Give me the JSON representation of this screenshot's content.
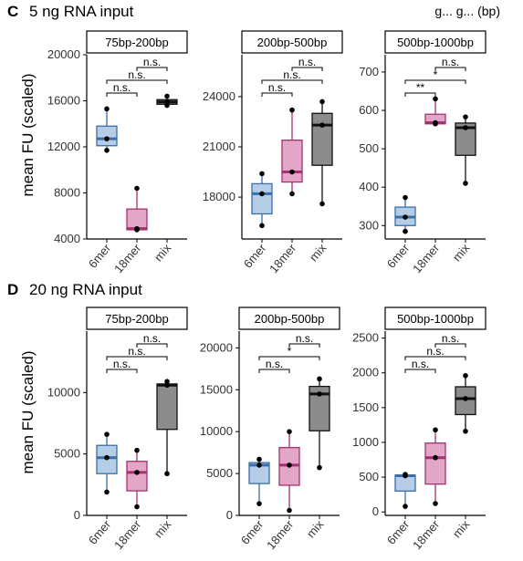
{
  "corner_text": "g... g... (bp)",
  "panels": [
    {
      "letter": "C",
      "title": "5 ng RNA input",
      "ylabel": "mean FU (scaled)"
    },
    {
      "letter": "D",
      "title": "20 ng RNA input",
      "ylabel": "mean FU (scaled)"
    }
  ],
  "colors": {
    "6mer": "#3a6ea5",
    "6mer_fill": "#b6cde8",
    "18mer": "#a3316f",
    "18mer_fill": "#e3a6c6",
    "mix": "#111111",
    "mix_fill": "#8c8c8c"
  },
  "chart_data": [
    {
      "type": "box",
      "panel": "C",
      "facet": "75bp-200bp",
      "categories": [
        "6mer",
        "18mer",
        "mix"
      ],
      "ylim": [
        4000,
        20000
      ],
      "yticks": [
        "4000",
        "8000",
        "12000",
        "16000",
        "20000"
      ],
      "boxes": [
        {
          "name": "6mer",
          "min": 11700,
          "q1": 12100,
          "median": 12700,
          "q3": 13800,
          "max": 15300,
          "points": [
            11700,
            12700,
            15300
          ]
        },
        {
          "name": "18mer",
          "min": 4800,
          "q1": 4800,
          "median": 4900,
          "q3": 6600,
          "max": 8400,
          "points": [
            4800,
            4900,
            8400
          ]
        },
        {
          "name": "mix",
          "min": 15600,
          "q1": 15700,
          "median": 15900,
          "q3": 16100,
          "max": 16400,
          "points": [
            15600,
            15900,
            16400
          ]
        }
      ],
      "comparisons": [
        {
          "from": "6mer",
          "to": "18mer",
          "label": "n.s.",
          "level": 0
        },
        {
          "from": "6mer",
          "to": "mix",
          "label": "n.s.",
          "level": 1
        },
        {
          "from": "18mer",
          "to": "mix",
          "label": "n.s.",
          "level": 2
        }
      ]
    },
    {
      "type": "box",
      "panel": "C",
      "facet": "200bp-500bp",
      "categories": [
        "6mer",
        "18mer",
        "mix"
      ],
      "ylim": [
        15500,
        26500
      ],
      "yticks": [
        "18000",
        "21000",
        "24000"
      ],
      "boxes": [
        {
          "name": "6mer",
          "min": 16300,
          "q1": 17000,
          "median": 18200,
          "q3": 18800,
          "max": 19400,
          "points": [
            16300,
            18200,
            19400
          ]
        },
        {
          "name": "18mer",
          "min": 18200,
          "q1": 18900,
          "median": 19500,
          "q3": 21400,
          "max": 23200,
          "points": [
            18200,
            19500,
            23200
          ]
        },
        {
          "name": "mix",
          "min": 17600,
          "q1": 19900,
          "median": 22300,
          "q3": 23000,
          "max": 23700,
          "points": [
            17600,
            22300,
            23700
          ]
        }
      ],
      "comparisons": [
        {
          "from": "6mer",
          "to": "18mer",
          "label": "n.s.",
          "level": 0
        },
        {
          "from": "6mer",
          "to": "mix",
          "label": "n.s.",
          "level": 1
        },
        {
          "from": "18mer",
          "to": "mix",
          "label": "n.s.",
          "level": 2
        }
      ]
    },
    {
      "type": "box",
      "panel": "C",
      "facet": "500bp-1000bp",
      "categories": [
        "6mer",
        "18mer",
        "mix"
      ],
      "ylim": [
        265,
        745
      ],
      "yticks": [
        "300",
        "400",
        "500",
        "600",
        "700"
      ],
      "boxes": [
        {
          "name": "6mer",
          "min": 285,
          "q1": 300,
          "median": 322,
          "q3": 348,
          "max": 373,
          "points": [
            285,
            322,
            373
          ]
        },
        {
          "name": "18mer",
          "min": 565,
          "q1": 565,
          "median": 568,
          "q3": 590,
          "max": 630,
          "points": [
            565,
            568,
            630
          ]
        },
        {
          "name": "mix",
          "min": 410,
          "q1": 483,
          "median": 555,
          "q3": 567,
          "max": 583,
          "points": [
            410,
            555,
            583
          ]
        }
      ],
      "comparisons": [
        {
          "from": "6mer",
          "to": "18mer",
          "label": "**",
          "level": 0
        },
        {
          "from": "6mer",
          "to": "mix",
          "label": "*",
          "level": 1
        },
        {
          "from": "18mer",
          "to": "mix",
          "label": "n.s.",
          "level": 2
        }
      ]
    },
    {
      "type": "box",
      "panel": "D",
      "facet": "75bp-200bp",
      "categories": [
        "6mer",
        "18mer",
        "mix"
      ],
      "ylim": [
        0,
        15000
      ],
      "yticks": [
        "0",
        "5000",
        "10000"
      ],
      "boxes": [
        {
          "name": "6mer",
          "min": 1900,
          "q1": 3400,
          "median": 4700,
          "q3": 5700,
          "max": 6600,
          "points": [
            1900,
            4700,
            6600
          ]
        },
        {
          "name": "18mer",
          "min": 700,
          "q1": 2000,
          "median": 3500,
          "q3": 4400,
          "max": 5300,
          "points": [
            700,
            3500,
            5300
          ]
        },
        {
          "name": "mix",
          "min": 3400,
          "q1": 7000,
          "median": 10600,
          "q3": 10700,
          "max": 10900,
          "points": [
            3400,
            10600,
            10900
          ]
        }
      ],
      "comparisons": [
        {
          "from": "6mer",
          "to": "18mer",
          "label": "n.s.",
          "level": 0
        },
        {
          "from": "6mer",
          "to": "mix",
          "label": "n.s.",
          "level": 1
        },
        {
          "from": "18mer",
          "to": "mix",
          "label": "n.s.",
          "level": 2
        }
      ]
    },
    {
      "type": "box",
      "panel": "D",
      "facet": "200bp-500bp",
      "categories": [
        "6mer",
        "18mer",
        "mix"
      ],
      "ylim": [
        0,
        22000
      ],
      "yticks": [
        "0",
        "5000",
        "10000",
        "15000",
        "20000"
      ],
      "boxes": [
        {
          "name": "6mer",
          "min": 1400,
          "q1": 3800,
          "median": 6000,
          "q3": 6300,
          "max": 6700,
          "points": [
            1400,
            6000,
            6700
          ]
        },
        {
          "name": "18mer",
          "min": 600,
          "q1": 3600,
          "median": 6000,
          "q3": 8100,
          "max": 10000,
          "points": [
            600,
            6000,
            10000
          ]
        },
        {
          "name": "mix",
          "min": 5700,
          "q1": 10100,
          "median": 14500,
          "q3": 15400,
          "max": 16300,
          "points": [
            5700,
            14500,
            16300
          ]
        }
      ],
      "comparisons": [
        {
          "from": "6mer",
          "to": "18mer",
          "label": "n.s.",
          "level": 0
        },
        {
          "from": "6mer",
          "to": "mix",
          "label": "*",
          "level": 1
        },
        {
          "from": "18mer",
          "to": "mix",
          "label": "n.s.",
          "level": 2
        }
      ]
    },
    {
      "type": "box",
      "panel": "D",
      "facet": "500bp-1000bp",
      "categories": [
        "6mer",
        "18mer",
        "mix"
      ],
      "ylim": [
        -50,
        2600
      ],
      "yticks": [
        "0",
        "500",
        "1000",
        "1500",
        "2000",
        "2500"
      ],
      "boxes": [
        {
          "name": "6mer",
          "min": 80,
          "q1": 300,
          "median": 520,
          "q3": 530,
          "max": 540,
          "points": [
            80,
            520,
            540
          ]
        },
        {
          "name": "18mer",
          "min": 120,
          "q1": 400,
          "median": 780,
          "q3": 990,
          "max": 1180,
          "points": [
            120,
            780,
            1180
          ]
        },
        {
          "name": "mix",
          "min": 1160,
          "q1": 1400,
          "median": 1630,
          "q3": 1800,
          "max": 1960,
          "points": [
            1160,
            1630,
            1960
          ]
        }
      ],
      "comparisons": [
        {
          "from": "6mer",
          "to": "18mer",
          "label": "n.s.",
          "level": 0
        },
        {
          "from": "6mer",
          "to": "mix",
          "label": "n.s.",
          "level": 1
        },
        {
          "from": "18mer",
          "to": "mix",
          "label": "n.s.",
          "level": 2
        }
      ]
    }
  ]
}
